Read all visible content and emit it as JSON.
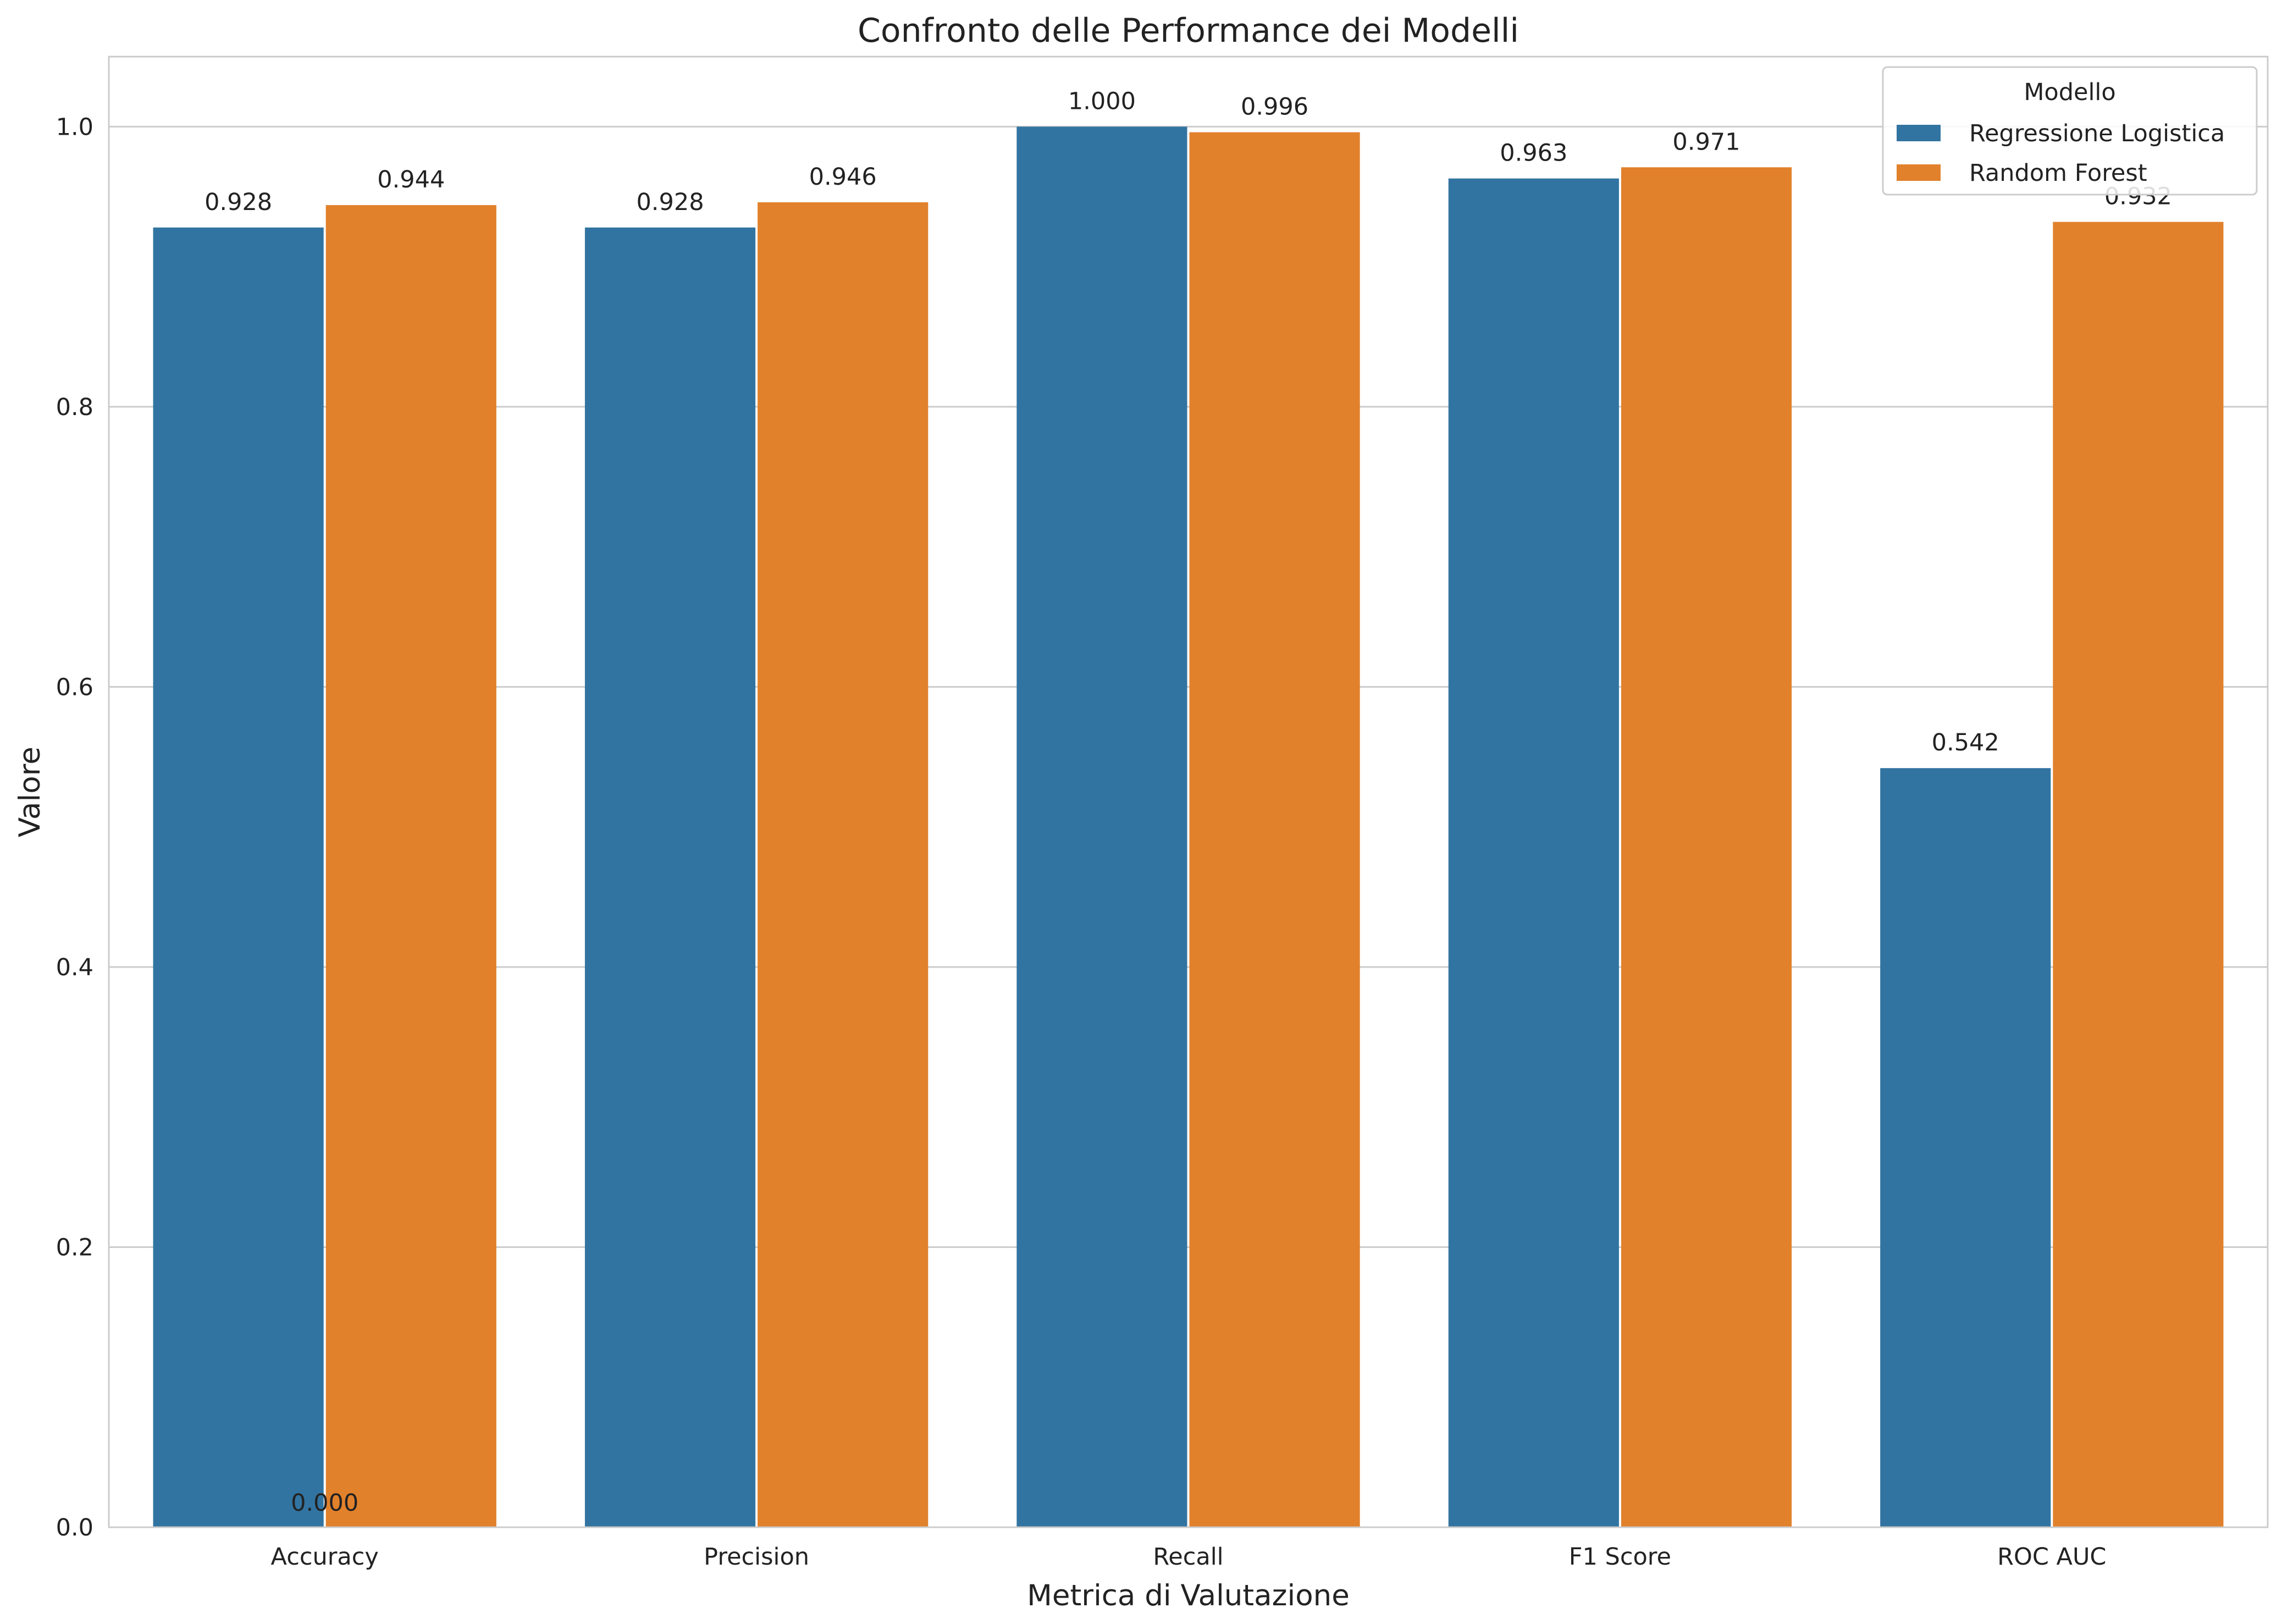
{
  "chart_data": {
    "type": "bar",
    "title": "Confronto delle Performance dei Modelli",
    "xlabel": "Metrica di Valutazione",
    "ylabel": "Valore",
    "categories": [
      "Accuracy",
      "Precision",
      "Recall",
      "F1 Score",
      "ROC AUC"
    ],
    "series": [
      {
        "name": "Regressione Logistica",
        "color": "#3274a1",
        "values": [
          0.928,
          0.928,
          1.0,
          0.963,
          0.542
        ]
      },
      {
        "name": "Random Forest",
        "color": "#e1812c",
        "values": [
          0.944,
          0.946,
          0.996,
          0.971,
          0.932
        ]
      }
    ],
    "bar_labels": [
      [
        "0.928",
        "0.928",
        "1.000",
        "0.963",
        "0.542"
      ],
      [
        "0.944",
        "0.946",
        "0.996",
        "0.971",
        "0.932"
      ]
    ],
    "extra_annotations": [
      {
        "text": "0.000",
        "category": "Accuracy",
        "value": 0.0
      }
    ],
    "ylim": [
      0,
      1.05
    ],
    "yticks": [
      "0.0",
      "0.2",
      "0.4",
      "0.6",
      "0.8",
      "1.0"
    ],
    "ytick_values": [
      0,
      0.2,
      0.4,
      0.6,
      0.8,
      1.0
    ],
    "grid": true,
    "grid_axis": "y",
    "legend": {
      "title": "Modello",
      "position": "top-right"
    }
  }
}
